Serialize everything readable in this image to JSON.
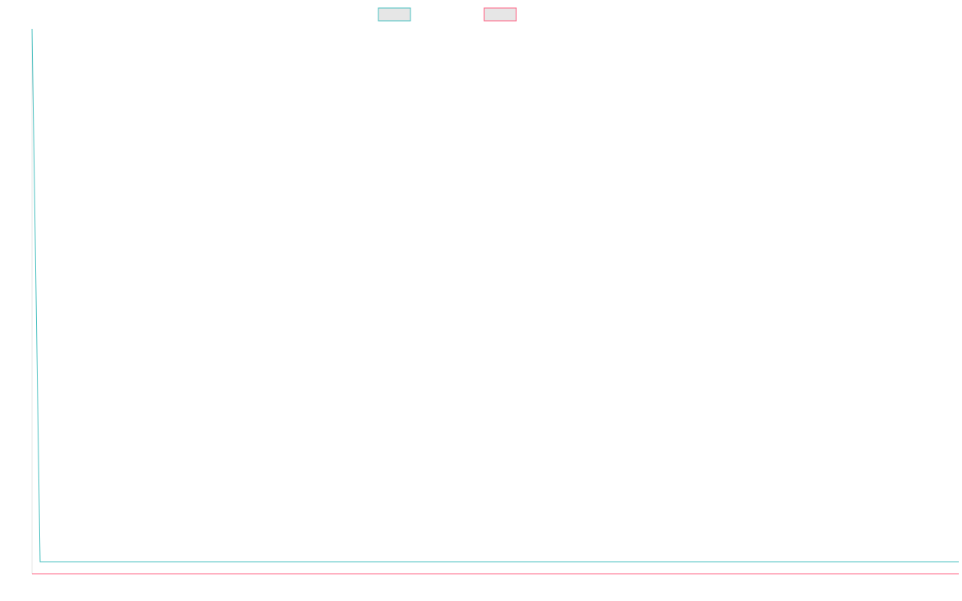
{
  "chart_data": {
    "type": "line",
    "title": "",
    "xlabel": "",
    "ylabel": "",
    "grid": false,
    "legend_position": "top-center",
    "series": [
      {
        "color": "#4bc0c0",
        "fill": "#e6e6e6",
        "start_value": 1.0,
        "values_after_start": 0.0
      },
      {
        "color": "#ff6384",
        "fill": "#e6e6e6",
        "start_value": 0.0,
        "values_after_start": 0.0
      }
    ]
  }
}
